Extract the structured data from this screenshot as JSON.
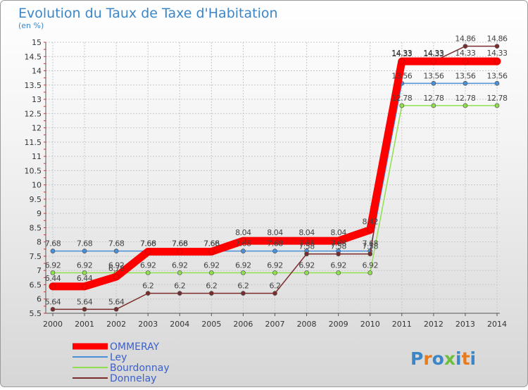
{
  "chart_data": {
    "type": "line",
    "title": "Evolution du Taux de Taxe d'Habitation",
    "unit_label": "(en %)",
    "x": [
      "2000",
      "2001",
      "2002",
      "2003",
      "2004",
      "2005",
      "2006",
      "2007",
      "2008",
      "2009",
      "2010",
      "2011",
      "2012",
      "2013",
      "2014"
    ],
    "y_ticks": [
      "5.5",
      "6",
      "6.5",
      "7",
      "7.5",
      "8",
      "8.5",
      "9",
      "9.5",
      "10",
      "10.5",
      "11",
      "11.5",
      "12",
      "12.5",
      "13",
      "13.5",
      "14",
      "14.5",
      "15"
    ],
    "ylim": [
      5.5,
      15
    ],
    "grid": true,
    "legend_position": "bottom-left",
    "series": [
      {
        "name": "OMMERAY",
        "color": "#ff0000",
        "values": [
          6.44,
          6.44,
          6.78,
          7.66,
          7.66,
          7.66,
          8.04,
          8.04,
          8.04,
          8.04,
          8.42,
          14.33,
          14.33,
          14.33,
          14.33
        ],
        "labels": [
          "6.44",
          "6.44",
          "6.78",
          "7.66",
          "7.66",
          "7.66",
          "8.04",
          "8.04",
          "8.04",
          "8.04",
          "8.42",
          "14.33",
          "14.33",
          "14.33",
          "14.33"
        ]
      },
      {
        "name": "Ley",
        "color": "#4a90d9",
        "values": [
          7.68,
          7.68,
          7.68,
          7.68,
          7.68,
          7.68,
          7.68,
          7.68,
          7.68,
          7.68,
          7.68,
          13.56,
          13.56,
          13.56,
          13.56
        ],
        "labels": [
          "7.68",
          "7.68",
          "7.68",
          "7.68",
          "7.68",
          "7.68",
          "7.68",
          "7.68",
          "7.68",
          "7.68",
          "7.68",
          "13.56",
          "13.56",
          "13.56",
          "13.56"
        ]
      },
      {
        "name": "Bourdonnay",
        "color": "#8fe04f",
        "values": [
          6.92,
          6.92,
          6.92,
          6.92,
          6.92,
          6.92,
          6.92,
          6.92,
          6.92,
          6.92,
          6.92,
          12.78,
          12.78,
          12.78,
          12.78
        ],
        "labels": [
          "6.92",
          "6.92",
          "6.92",
          "6.92",
          "6.92",
          "6.92",
          "6.92",
          "6.92",
          "6.92",
          "6.92",
          "6.92",
          "12.78",
          "12.78",
          "12.78",
          "12.78"
        ]
      },
      {
        "name": "Donnelay",
        "color": "#7b2b2b",
        "values": [
          5.64,
          5.64,
          5.64,
          6.2,
          6.2,
          6.2,
          6.2,
          6.2,
          7.58,
          7.58,
          7.58,
          14.33,
          14.33,
          14.86,
          14.86
        ],
        "labels": [
          "5.64",
          "5.64",
          "5.64",
          "6.2",
          "6.2",
          "6.2",
          "6.2",
          "6.2",
          "7.58",
          "7.58",
          "7.58",
          "14.33",
          "14.33",
          "14.86",
          "14.86"
        ]
      }
    ]
  },
  "logo": {
    "text": "Proxiti"
  }
}
